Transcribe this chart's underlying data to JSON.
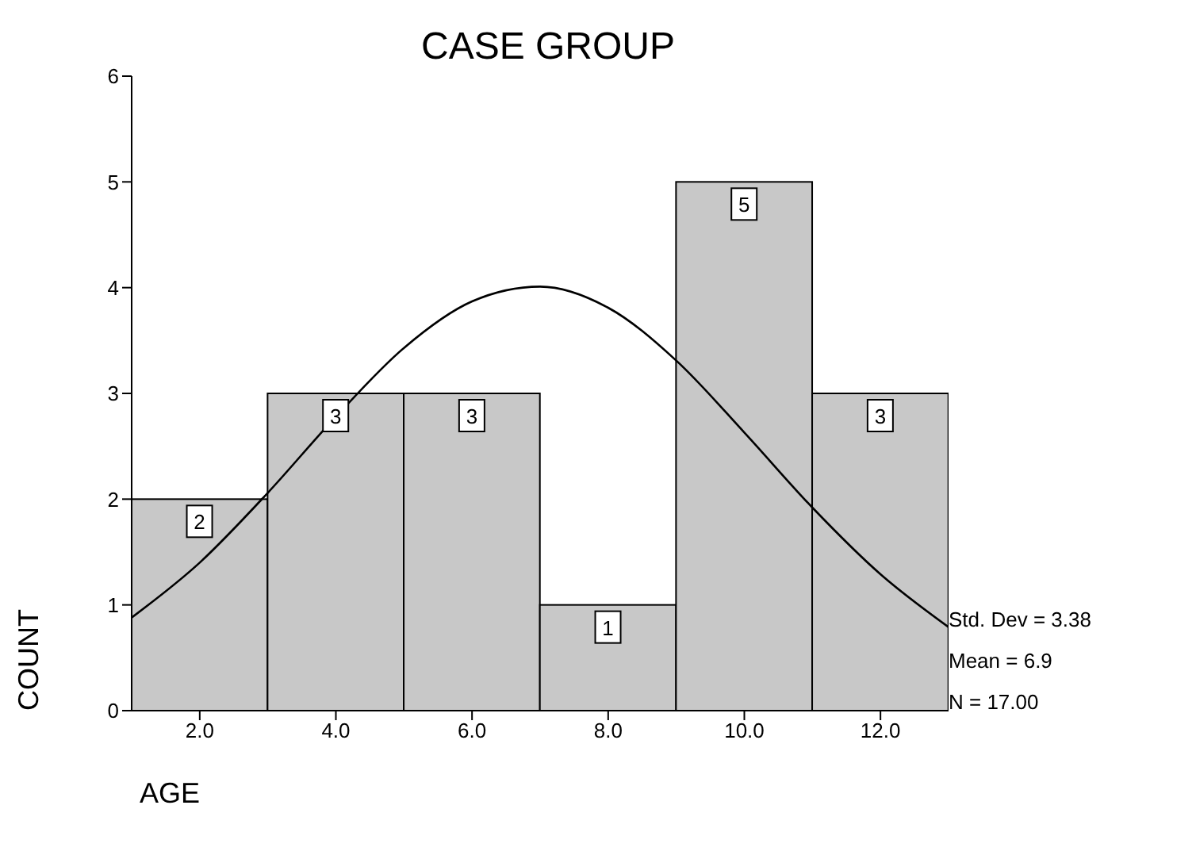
{
  "chart_data": {
    "type": "histogram",
    "title": "CASE GROUP",
    "xlabel": "AGE",
    "ylabel": "COUNT",
    "bins": [
      1,
      3,
      5,
      7,
      9,
      11,
      13
    ],
    "values": [
      2,
      3,
      3,
      1,
      5,
      3
    ],
    "color": "#c8c8c8",
    "value_labels": [
      "2",
      "3",
      "3",
      "1",
      "5",
      "3"
    ],
    "series": [
      {
        "type": "line",
        "color": "#000000",
        "x": [
          1,
          2,
          3,
          4,
          5,
          6,
          7,
          8,
          9,
          10,
          11,
          12,
          13
        ],
        "values": [
          0.88,
          1.4,
          2.06,
          2.78,
          3.43,
          3.87,
          4.01,
          3.81,
          3.31,
          2.63,
          1.92,
          1.29,
          0.79
        ]
      }
    ],
    "xlim": [
      1,
      13
    ],
    "xticks": [
      {
        "value": 2,
        "label": "2.0"
      },
      {
        "value": 4,
        "label": "4.0"
      },
      {
        "value": 6,
        "label": "6.0"
      },
      {
        "value": 8,
        "label": "8.0"
      },
      {
        "value": 10,
        "label": "10.0"
      },
      {
        "value": 12,
        "label": "12.0"
      }
    ],
    "ylim": [
      0,
      6
    ],
    "yticks": [
      0,
      1,
      2,
      3,
      4,
      5,
      6
    ],
    "annotations": [
      "Std. Dev = 3.38",
      "Mean = 6.9",
      "N = 17.00"
    ]
  }
}
